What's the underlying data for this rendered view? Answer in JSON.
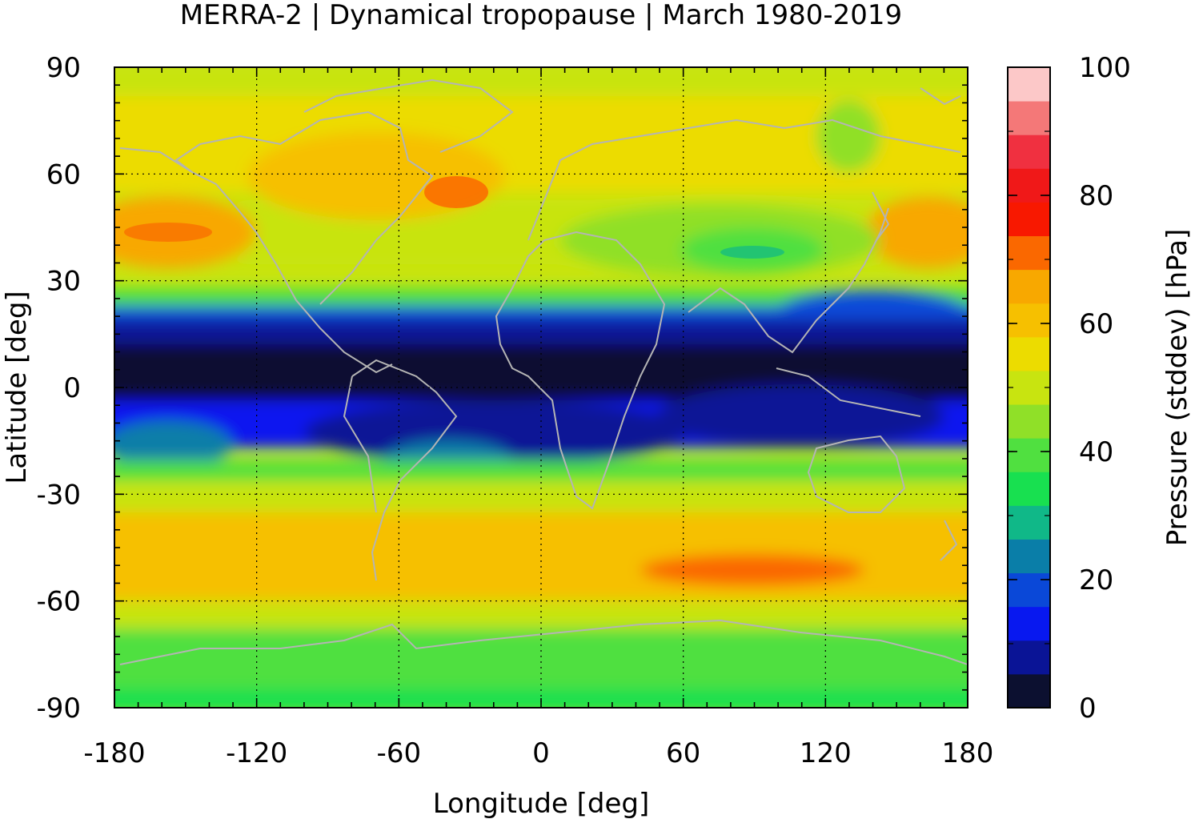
{
  "title": "MERRA-2 | Dynamical tropopause | March 1980-2019",
  "map": {
    "xlabel": "Longitude [deg]",
    "ylabel": "Latitude [deg]",
    "xlim": [
      -180,
      180
    ],
    "ylim": [
      -90,
      90
    ],
    "x_ticks": [
      "-180",
      "-120",
      "-60",
      "0",
      "60",
      "120",
      "180"
    ],
    "y_ticks": [
      "90",
      "60",
      "30",
      "0",
      "-30",
      "-60",
      "-90"
    ],
    "grid": "dotted",
    "coastline_color": "#b4b4b4"
  },
  "colorbar": {
    "label": "Pressure (stddev) [hPa]",
    "range": [
      0,
      100
    ],
    "ticks": [
      "100",
      "80",
      "60",
      "40",
      "20",
      "0"
    ],
    "colors": [
      "#0c1030",
      "#0a1496",
      "#0818f0",
      "#0a48d8",
      "#0a7ea8",
      "#10b888",
      "#18e050",
      "#50e040",
      "#90e028",
      "#c8e410",
      "#ecdc00",
      "#f6c000",
      "#f8a800",
      "#fa6800",
      "#f81800",
      "#f01818",
      "#f03040",
      "#f47878",
      "#fcc8c8"
    ]
  }
}
